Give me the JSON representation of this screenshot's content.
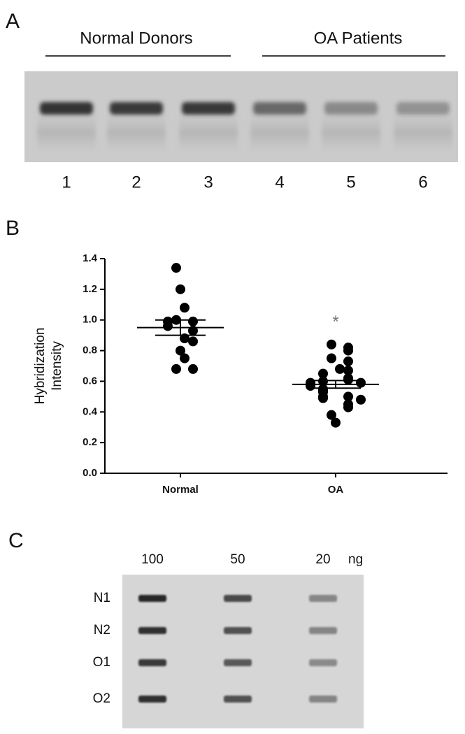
{
  "panel_a": {
    "label": "A",
    "groups": [
      "Normal Donors",
      "OA Patients"
    ],
    "lanes": [
      "1",
      "2",
      "3",
      "4",
      "5",
      "6"
    ]
  },
  "chart_data": {
    "type": "dotplot",
    "label": "B",
    "ylabel": [
      "Hybridization",
      "Intensity"
    ],
    "categories": [
      "Normal",
      "OA"
    ],
    "values": [
      [
        1.34,
        1.2,
        1.08,
        1.0,
        0.99,
        0.99,
        0.96,
        0.93,
        0.88,
        0.86,
        0.8,
        0.75,
        0.68,
        0.68
      ],
      [
        0.84,
        0.82,
        0.8,
        0.75,
        0.73,
        0.68,
        0.67,
        0.65,
        0.62,
        0.61,
        0.6,
        0.59,
        0.59,
        0.58,
        0.57,
        0.55,
        0.54,
        0.53,
        0.5,
        0.5,
        0.49,
        0.48,
        0.45,
        0.43,
        0.38,
        0.33
      ]
    ],
    "means": [
      0.95,
      0.58
    ],
    "errors": [
      0.05,
      0.025
    ],
    "annotations": [
      {
        "text": "*",
        "category": 1,
        "y": 1.0
      }
    ],
    "color": "#000000",
    "ylim": [
      0,
      1.4
    ],
    "yticks": [
      {
        "value": 0,
        "label": "0.0"
      },
      0.2,
      0.4,
      0.6,
      0.8,
      {
        "value": 1,
        "label": "1.0"
      },
      1.2,
      1.4
    ]
  },
  "panel_c": {
    "label": "C",
    "columns": [
      "100",
      "50",
      "20"
    ],
    "unit": "ng",
    "rows": [
      "N1",
      "N2",
      "O1",
      "O2"
    ]
  }
}
